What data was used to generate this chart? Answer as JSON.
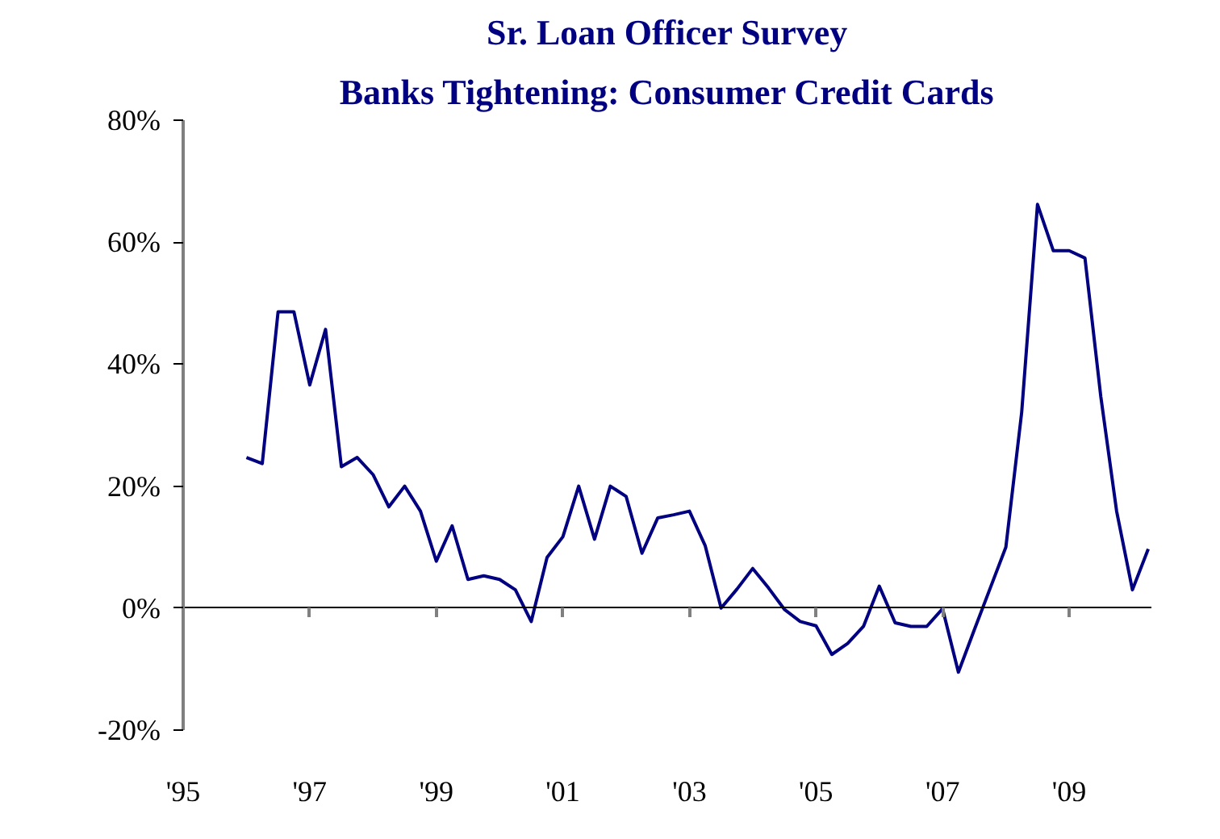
{
  "chart_data": {
    "type": "line",
    "title": "Sr. Loan Officer Survey",
    "subtitle": "Banks Tightening: Consumer Credit Cards",
    "x": [
      1996,
      1996.25,
      1996.5,
      1996.75,
      1997,
      1997.25,
      1997.5,
      1997.75,
      1998,
      1998.25,
      1998.5,
      1998.75,
      1999,
      1999.25,
      1999.5,
      1999.75,
      2000,
      2000.25,
      2000.5,
      2000.75,
      2001,
      2001.25,
      2001.5,
      2001.75,
      2002,
      2002.25,
      2002.5,
      2002.75,
      2003,
      2003.25,
      2003.5,
      2003.75,
      2004,
      2004.25,
      2004.5,
      2004.75,
      2005,
      2005.25,
      2005.5,
      2005.75,
      2006,
      2006.25,
      2006.5,
      2006.75,
      2007,
      2007.25,
      2007.5,
      2007.75,
      2008,
      2008.25,
      2008.5,
      2008.75,
      2009,
      2009.25,
      2009.5,
      2009.75,
      2010,
      2010.25
    ],
    "series": [
      {
        "color": "#000080",
        "values": [
          24.7,
          23.7,
          48.6,
          48.6,
          36.6,
          45.7,
          23.2,
          24.7,
          21.9,
          16.6,
          20.0,
          15.9,
          7.7,
          13.5,
          4.7,
          5.3,
          4.7,
          3.0,
          -2.2,
          8.3,
          11.7,
          20.0,
          11.3,
          20.0,
          18.3,
          9.0,
          14.8,
          15.3,
          15.9,
          10.2,
          0,
          3.1,
          6.5,
          3.3,
          -0.2,
          -2.2,
          -2.9,
          -7.6,
          -5.8,
          -3.0,
          3.6,
          -2.4,
          -3.0,
          -3.0,
          -0.1,
          -10.5,
          -3.6,
          3.2,
          10.0,
          32.1,
          66.2,
          58.6,
          58.6,
          57.4,
          34.7,
          15.9,
          3.0,
          9.7
        ]
      }
    ],
    "xlim": [
      1995,
      2010.3
    ],
    "ylim": [
      -20,
      80
    ],
    "xticks": [
      {
        "value": 1995,
        "label": "'95"
      },
      {
        "value": 1997,
        "label": "'97"
      },
      {
        "value": 1999,
        "label": "'99"
      },
      {
        "value": 2001,
        "label": "'01"
      },
      {
        "value": 2003,
        "label": "'03"
      },
      {
        "value": 2005,
        "label": "'05"
      },
      {
        "value": 2007,
        "label": "'07"
      },
      {
        "value": 2009,
        "label": "'09"
      }
    ],
    "yticks": [
      {
        "value": -20,
        "label": "-20%"
      },
      {
        "value": 0,
        "label": "0%"
      },
      {
        "value": 20,
        "label": "20%"
      },
      {
        "value": 40,
        "label": "40%"
      },
      {
        "value": 60,
        "label": "60%"
      },
      {
        "value": 80,
        "label": "80%"
      }
    ],
    "line_style": "solid"
  }
}
